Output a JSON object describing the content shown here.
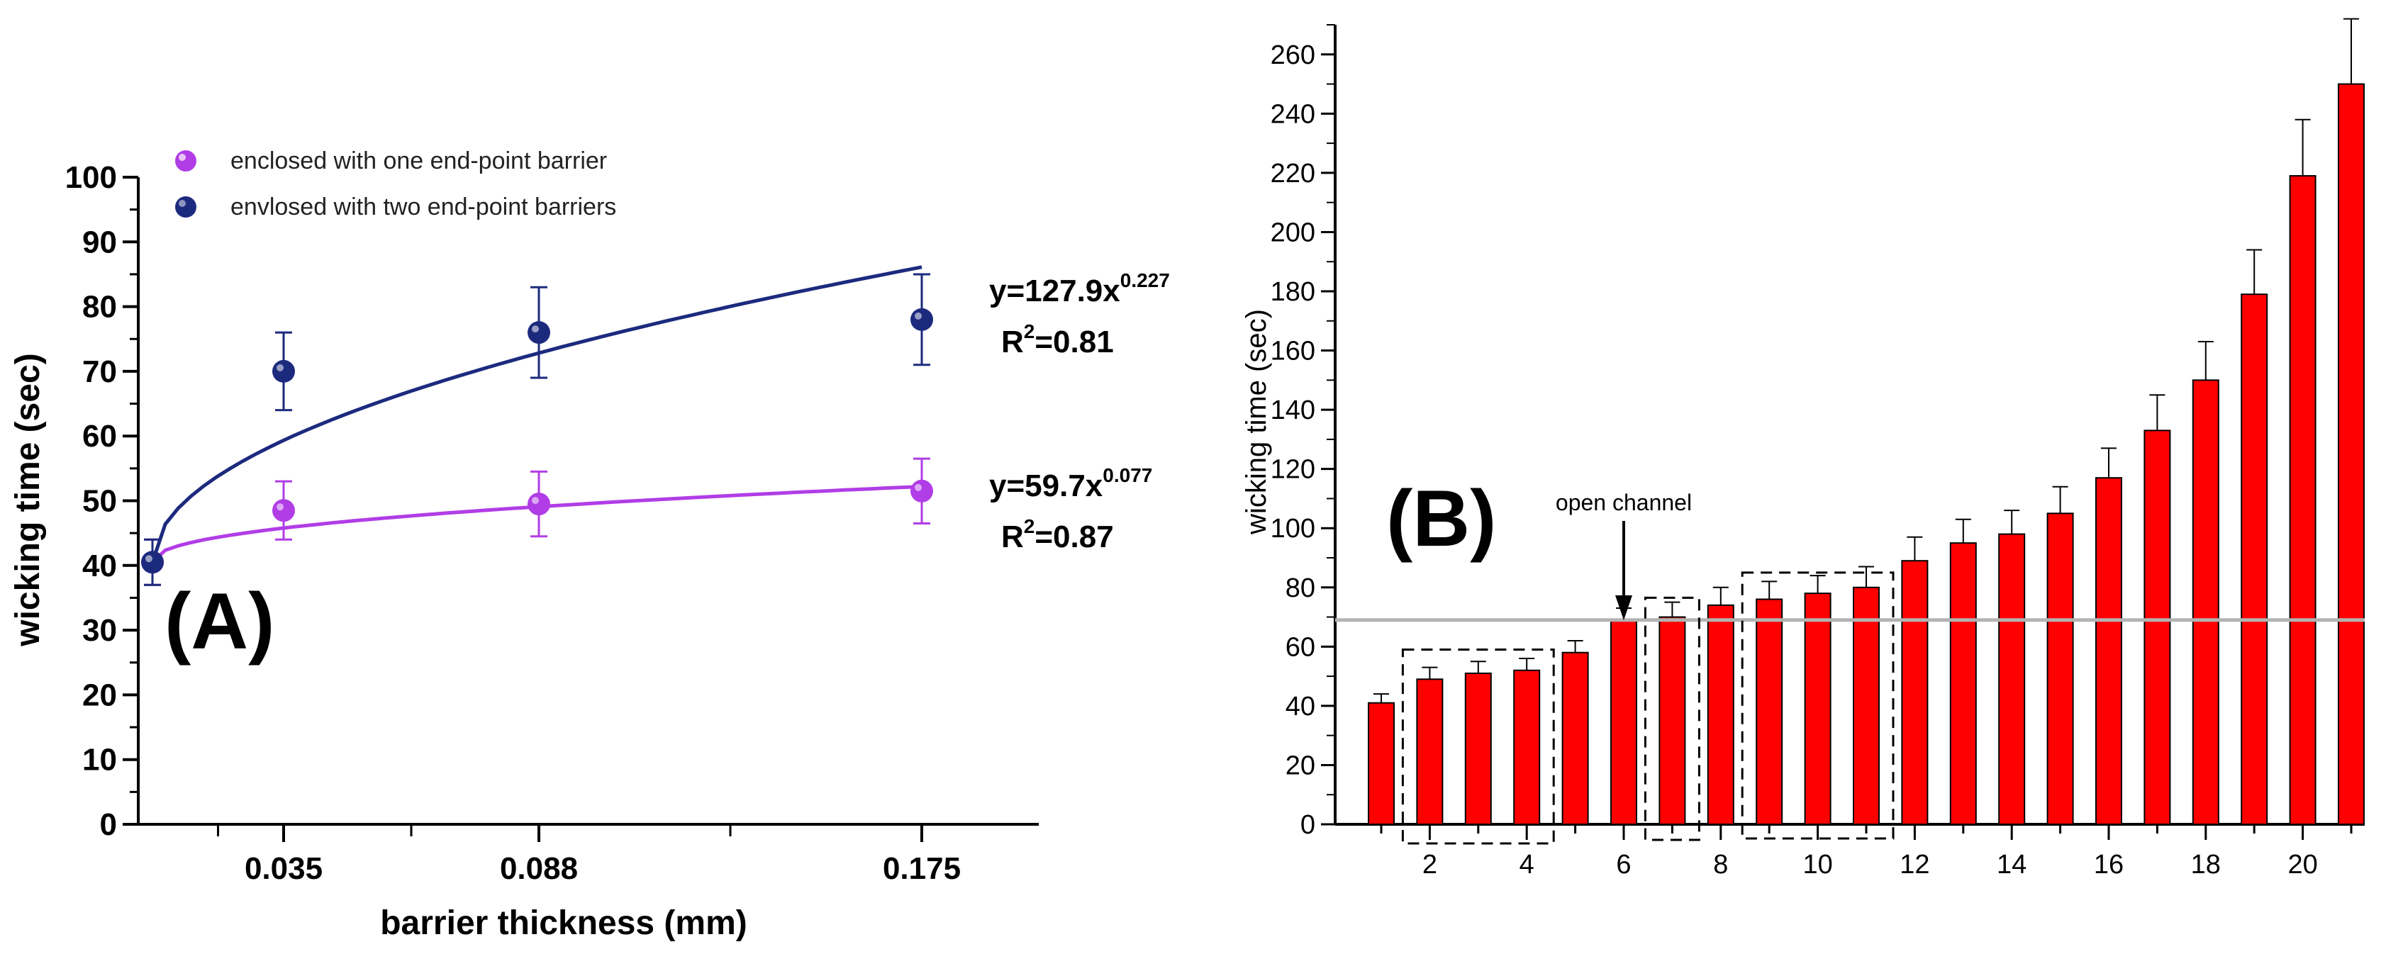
{
  "chart_data": [
    {
      "panel_label": "(A)",
      "type": "scatter",
      "xlabel": "barrier thickness (mm)",
      "ylabel": "wicking time (sec)",
      "ylim": [
        0,
        100
      ],
      "yticks": [
        "0",
        "10",
        "20",
        "30",
        "40",
        "50",
        "60",
        "70",
        "80",
        "90",
        "100"
      ],
      "x_tick_labels": [
        "0.035",
        "0.088",
        "0.175"
      ],
      "grid": false,
      "legend_position": "top-left",
      "series": [
        {
          "name": "enclosed with one end-point barrier",
          "color": "#b13de6",
          "points": [
            {
              "x": 0.0,
              "y": 40.5,
              "err": 3.5
            },
            {
              "x": 0.035,
              "y": 48.5,
              "err": 4.5
            },
            {
              "x": 0.088,
              "y": 49.5,
              "err": 5.0
            },
            {
              "x": 0.175,
              "y": 51.5,
              "err": 5.0
            }
          ],
          "fit": {
            "equation_prefix": "y=59.7x",
            "exponent": "0.077",
            "r2_prefix": "R",
            "r2_sup": "2",
            "r2_value": "=0.87",
            "a": 59.7,
            "b": 0.077
          }
        },
        {
          "name": "envlosed with two end-point barriers",
          "color": "#1c2a7e",
          "points": [
            {
              "x": 0.0,
              "y": 40.5,
              "err": 3.5
            },
            {
              "x": 0.035,
              "y": 70.0,
              "err": 6.0
            },
            {
              "x": 0.088,
              "y": 76.0,
              "err": 7.0
            },
            {
              "x": 0.175,
              "y": 78.0,
              "err": 7.0
            }
          ],
          "fit": {
            "equation_prefix": "y=127.9x",
            "exponent": "0.227",
            "r2_prefix": "R",
            "r2_sup": "2",
            "r2_value": "=0.81",
            "a": 127.9,
            "b": 0.227
          }
        }
      ]
    },
    {
      "panel_label": "(B)",
      "type": "bar",
      "xlabel": "",
      "ylabel": "wicking time (sec)",
      "ylim": [
        0,
        270
      ],
      "yticks": [
        "0",
        "20",
        "40",
        "60",
        "80",
        "100",
        "120",
        "140",
        "160",
        "180",
        "200",
        "220",
        "240",
        "260"
      ],
      "x_tick_labels": [
        "2",
        "4",
        "6",
        "8",
        "10",
        "12",
        "14",
        "16",
        "18",
        "20"
      ],
      "categories": [
        1,
        2,
        3,
        4,
        5,
        6,
        7,
        8,
        9,
        10,
        11,
        12,
        13,
        14,
        15,
        16,
        17,
        18,
        19,
        20,
        21
      ],
      "values": [
        41,
        49,
        51,
        52,
        58,
        69,
        70,
        74,
        76,
        78,
        80,
        89,
        95,
        98,
        105,
        117,
        133,
        150,
        179,
        219,
        250
      ],
      "errors": [
        3,
        4,
        4,
        4,
        4,
        4,
        5,
        6,
        6,
        6,
        7,
        8,
        8,
        8,
        9,
        10,
        12,
        13,
        15,
        19,
        22
      ],
      "bar_color": "#ff0000",
      "reference_line": 69,
      "annotation": "open channel",
      "dashed_groups": [
        [
          2,
          4
        ],
        [
          7,
          7
        ],
        [
          9,
          11
        ]
      ]
    }
  ]
}
